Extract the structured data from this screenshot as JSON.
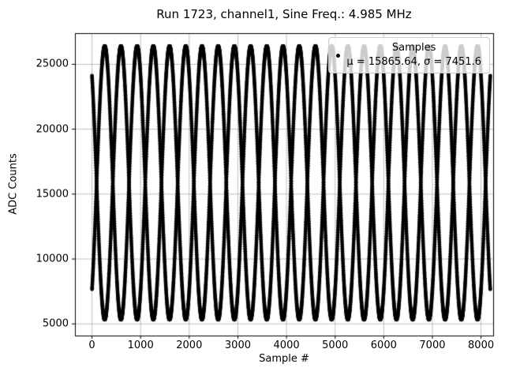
{
  "figure": {
    "title": "Run 1723, channel1, Sine Freq.: 4.985 MHz",
    "xlabel": "Sample #",
    "ylabel": "ADC Counts"
  },
  "legend": {
    "entry_label": "Samples",
    "stats_line": "μ = 15865.64, σ = 7451.6"
  },
  "chart_data": {
    "type": "scatter",
    "title": "Run 1723, channel1, Sine Freq.: 4.985 MHz",
    "xlabel": "Sample #",
    "ylabel": "ADC Counts",
    "stats": {
      "mu": 15865.64,
      "sigma": 7451.6
    },
    "series": [
      {
        "name": "Samples",
        "marker": "point",
        "color": "#000000",
        "generator": {
          "kind": "sampled_sine",
          "description": "4.985 MHz sine sampled near Nyquist; dots trace two interleaved aliased envelopes y[n] = mean + amplitude*sin(2*pi*normalized_frequency*n + phase), ~25 crossing lobes over 0..8191",
          "n_samples": 8192,
          "mean": 15865.64,
          "sigma": 7451.6,
          "amplitude": 10538.0,
          "normalized_frequency": 0.4985,
          "phase": 0.9
        }
      }
    ],
    "axes": {
      "xlim": [
        -350,
        8250
      ],
      "ylim": [
        4100,
        27400
      ],
      "xticks": [
        0,
        1000,
        2000,
        3000,
        4000,
        5000,
        6000,
        7000,
        8000
      ],
      "yticks": [
        5000,
        10000,
        15000,
        20000,
        25000
      ],
      "grid": true,
      "grid_color": "#b0b0b0",
      "legend_position": "upper right"
    }
  }
}
